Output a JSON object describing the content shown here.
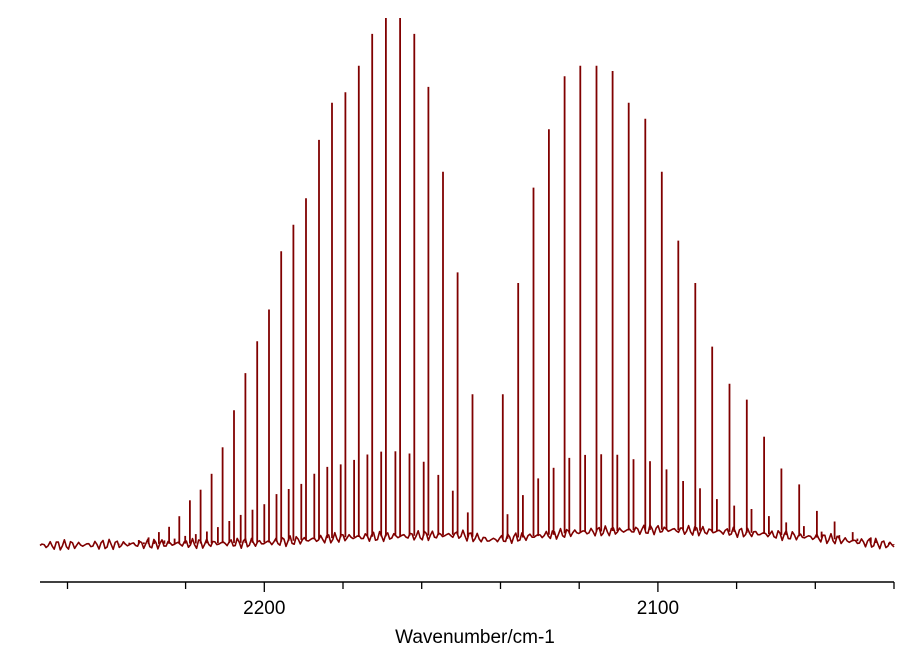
{
  "chart_data": {
    "type": "line",
    "title": "",
    "xlabel": "Wavenumber/cm-1",
    "ylabel": "",
    "x_reversed": true,
    "xlim": [
      2257,
      2040
    ],
    "ylim": [
      0,
      1.0
    ],
    "grid": false,
    "legend": "none",
    "color": "#800000",
    "xticks_major": [
      2200,
      2100
    ],
    "xticks_minor": [
      2250,
      2220,
      2180,
      2160,
      2140,
      2120,
      2080,
      2060,
      2040
    ],
    "baseline": [
      {
        "x": 2257,
        "y": 0.005
      },
      {
        "x": 2200,
        "y": 0.01
      },
      {
        "x": 2180,
        "y": 0.02
      },
      {
        "x": 2150,
        "y": 0.025
      },
      {
        "x": 2143,
        "y": 0.015
      },
      {
        "x": 2120,
        "y": 0.03
      },
      {
        "x": 2100,
        "y": 0.035
      },
      {
        "x": 2080,
        "y": 0.03
      },
      {
        "x": 2060,
        "y": 0.02
      },
      {
        "x": 2040,
        "y": 0.005
      }
    ],
    "series": [
      {
        "branch": "R",
        "x": [
          2147.1,
          2150.9,
          2154.6,
          2158.3,
          2161.9,
          2165.5,
          2169.1,
          2172.6,
          2176.0,
          2179.4,
          2182.8,
          2186.1,
          2189.4,
          2192.6,
          2195.7,
          2198.8,
          2201.8,
          2204.8,
          2207.7,
          2210.6,
          2213.4,
          2216.2,
          2218.9,
          2221.6,
          2224.2,
          2226.8,
          2229.4,
          2231.9,
          2234.3,
          2236.8
        ],
        "y": [
          0.29,
          0.52,
          0.71,
          0.87,
          0.97,
          1.0,
          1.0,
          0.97,
          0.91,
          0.86,
          0.84,
          0.77,
          0.66,
          0.61,
          0.56,
          0.45,
          0.39,
          0.33,
          0.26,
          0.19,
          0.14,
          0.11,
          0.09,
          0.06,
          0.04,
          0.03,
          0.02,
          0.015,
          0.01,
          0.008
        ]
      },
      {
        "branch": "P",
        "x": [
          2139.4,
          2135.5,
          2131.6,
          2127.7,
          2123.7,
          2119.7,
          2115.6,
          2111.5,
          2107.4,
          2103.2,
          2099.0,
          2094.8,
          2090.5,
          2086.2,
          2081.8,
          2077.4,
          2073.0,
          2068.6,
          2064.1,
          2059.6,
          2055.1,
          2050.5,
          2045.9,
          2041.3
        ],
        "y": [
          0.29,
          0.5,
          0.68,
          0.79,
          0.89,
          0.91,
          0.91,
          0.9,
          0.84,
          0.81,
          0.71,
          0.58,
          0.5,
          0.38,
          0.31,
          0.28,
          0.21,
          0.15,
          0.12,
          0.07,
          0.05,
          0.03,
          0.02,
          0.01
        ]
      }
    ]
  }
}
